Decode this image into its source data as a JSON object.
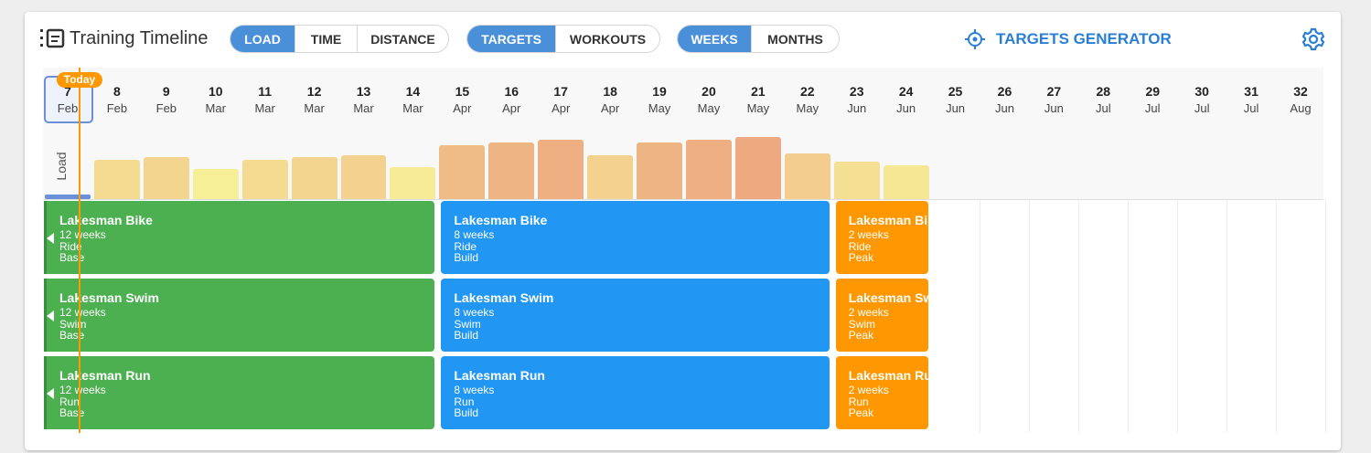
{
  "header": {
    "title": "Training Timeline",
    "groups": [
      [
        "LOAD",
        "TIME",
        "DISTANCE"
      ],
      [
        "TARGETS",
        "WORKOUTS"
      ],
      [
        "WEEKS",
        "MONTHS"
      ]
    ],
    "generator": "TARGETS GENERATOR"
  },
  "timeline": {
    "today": "Today",
    "weeks": [
      {
        "week": 7,
        "month": "Feb"
      },
      {
        "week": 8,
        "month": "Feb"
      },
      {
        "week": 9,
        "month": "Feb"
      },
      {
        "week": 10,
        "month": "Mar"
      },
      {
        "week": 11,
        "month": "Mar"
      },
      {
        "week": 12,
        "month": "Mar"
      },
      {
        "week": 13,
        "month": "Mar"
      },
      {
        "week": 14,
        "month": "Mar"
      },
      {
        "week": 15,
        "month": "Apr"
      },
      {
        "week": 16,
        "month": "Apr"
      },
      {
        "week": 17,
        "month": "Apr"
      },
      {
        "week": 18,
        "month": "Apr"
      },
      {
        "week": 19,
        "month": "May"
      },
      {
        "week": 20,
        "month": "May"
      },
      {
        "week": 21,
        "month": "May"
      },
      {
        "week": 22,
        "month": "May"
      },
      {
        "week": 23,
        "month": "Jun"
      },
      {
        "week": 24,
        "month": "Jun"
      },
      {
        "week": 25,
        "month": "Jun"
      },
      {
        "week": 26,
        "month": "Jun"
      },
      {
        "week": 27,
        "month": "Jun"
      },
      {
        "week": 28,
        "month": "Jul"
      },
      {
        "week": 29,
        "month": "Jul"
      },
      {
        "week": 30,
        "month": "Jul"
      },
      {
        "week": 31,
        "month": "Jul"
      },
      {
        "week": 32,
        "month": "Aug"
      }
    ],
    "load_label": "Load",
    "load": [
      43,
      46,
      33,
      43,
      46,
      48,
      35,
      59,
      62,
      65,
      48,
      62,
      65,
      68,
      50,
      41,
      37
    ],
    "rows": [
      {
        "blocks": [
          {
            "name": "Lakesman Bike",
            "duration": "12 weeks",
            "sport": "Ride",
            "phase": "Base"
          },
          {
            "name": "Lakesman Bike",
            "duration": "8 weeks",
            "sport": "Ride",
            "phase": "Build"
          },
          {
            "name": "Lakesman Bike",
            "duration": "2 weeks",
            "sport": "Ride",
            "phase": "Peak"
          }
        ]
      },
      {
        "blocks": [
          {
            "name": "Lakesman Swim",
            "duration": "12 weeks",
            "sport": "Swim",
            "phase": "Base"
          },
          {
            "name": "Lakesman Swim",
            "duration": "8 weeks",
            "sport": "Swim",
            "phase": "Build"
          },
          {
            "name": "Lakesman Swim",
            "duration": "2 weeks",
            "sport": "Swim",
            "phase": "Peak"
          }
        ]
      },
      {
        "blocks": [
          {
            "name": "Lakesman Run",
            "duration": "12 weeks",
            "sport": "Run",
            "phase": "Base"
          },
          {
            "name": "Lakesman Run",
            "duration": "8 weeks",
            "sport": "Run",
            "phase": "Build"
          },
          {
            "name": "Lakesman Run",
            "duration": "2 weeks",
            "sport": "Run",
            "phase": "Peak"
          }
        ]
      }
    ]
  }
}
